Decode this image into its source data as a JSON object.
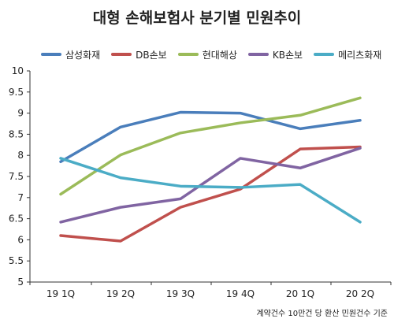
{
  "chart_data": {
    "type": "line",
    "title": "대형 손해보험사 분기별 민원추이",
    "categories": [
      "19 1Q",
      "19 2Q",
      "19 3Q",
      "19 4Q",
      "20 1Q",
      "20 2Q"
    ],
    "series": [
      {
        "name": "삼성화재",
        "color": "#4a7ebb",
        "values": [
          7.85,
          8.67,
          9.02,
          9.0,
          8.63,
          8.83
        ]
      },
      {
        "name": "DB손보",
        "color": "#c0504d",
        "values": [
          6.1,
          5.97,
          6.77,
          7.2,
          8.15,
          8.2
        ]
      },
      {
        "name": "현대해상",
        "color": "#9bbb59",
        "values": [
          7.08,
          8.01,
          8.53,
          8.77,
          8.95,
          9.36
        ]
      },
      {
        "name": "KB손보",
        "color": "#8064a2",
        "values": [
          6.42,
          6.77,
          6.97,
          7.93,
          7.7,
          8.17
        ]
      },
      {
        "name": "메리츠화재",
        "color": "#4bacc6",
        "values": [
          7.93,
          7.47,
          7.27,
          7.24,
          7.31,
          6.42
        ]
      }
    ],
    "ylim": [
      5,
      10
    ],
    "yticks": [
      "5",
      "5.5",
      "6",
      "6.5",
      "7",
      "7.5",
      "8",
      "8.5",
      "9",
      "9.5",
      "10"
    ],
    "grid": false,
    "legend_position": "top",
    "footnote": "계약건수 10만건 당 환산 민원건수 기준"
  }
}
